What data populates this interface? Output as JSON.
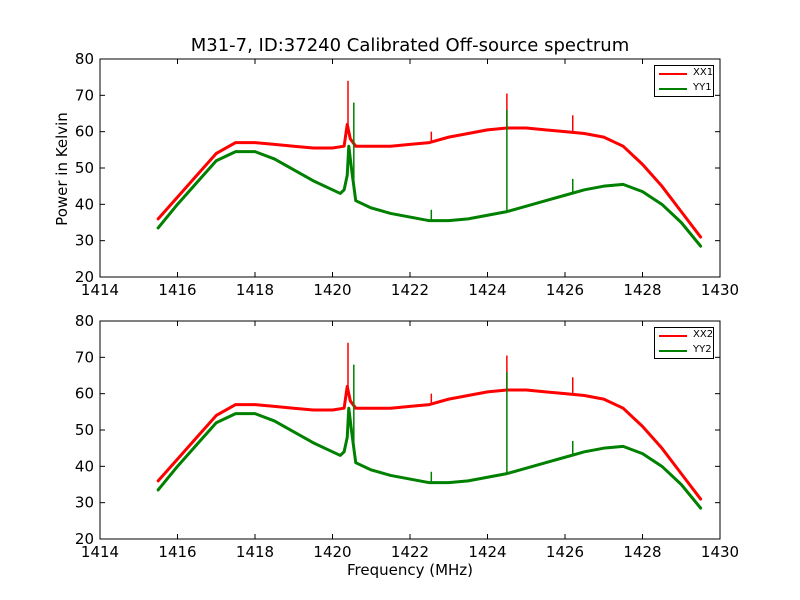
{
  "chart_data": [
    {
      "type": "line",
      "title": "M31-7, ID:37240 Calibrated Off-source spectrum",
      "xlabel": "",
      "ylabel": "Power in Kelvin",
      "xlim": [
        1414,
        1430
      ],
      "ylim": [
        20,
        80
      ],
      "xticks": [
        1414,
        1416,
        1418,
        1420,
        1422,
        1424,
        1426,
        1428,
        1430
      ],
      "yticks": [
        20,
        30,
        40,
        50,
        60,
        70,
        80
      ],
      "grid": false,
      "legend_position": "top-right",
      "series": [
        {
          "name": "XX1",
          "color": "#ff0000",
          "x": [
            1415.5,
            1416,
            1416.5,
            1417,
            1417.5,
            1418,
            1418.5,
            1419,
            1419.5,
            1420,
            1420.3,
            1420.38,
            1420.42,
            1420.46,
            1420.6,
            1421,
            1421.5,
            1422,
            1422.5,
            1423,
            1423.5,
            1424,
            1424.5,
            1425,
            1425.5,
            1426,
            1426.5,
            1427,
            1427.5,
            1428,
            1428.5,
            1429,
            1429.5
          ],
          "y": [
            36,
            42,
            48,
            54,
            57,
            57,
            56.5,
            56,
            55.5,
            55.5,
            56,
            62,
            60,
            58,
            56,
            56,
            56,
            56.5,
            57,
            58.5,
            59.5,
            60.5,
            61,
            61,
            60.5,
            60,
            59.5,
            58.5,
            56,
            51,
            45,
            38,
            31
          ],
          "spikes": [
            {
              "x": 1420.4,
              "y": 74
            },
            {
              "x": 1422.55,
              "y": 60
            },
            {
              "x": 1424.5,
              "y": 70.5
            },
            {
              "x": 1426.2,
              "y": 64.5
            }
          ]
        },
        {
          "name": "YY1",
          "color": "#008000",
          "x": [
            1415.5,
            1416,
            1416.5,
            1417,
            1417.5,
            1418,
            1418.5,
            1419,
            1419.5,
            1420,
            1420.2,
            1420.3,
            1420.38,
            1420.42,
            1420.5,
            1420.6,
            1421,
            1421.5,
            1422,
            1422.5,
            1423,
            1423.5,
            1424,
            1424.5,
            1425,
            1425.5,
            1426,
            1426.5,
            1427,
            1427.5,
            1428,
            1428.5,
            1429,
            1429.5
          ],
          "y": [
            33.5,
            40,
            46,
            52,
            54.5,
            54.5,
            52.5,
            49.5,
            46.5,
            44,
            43,
            44,
            48,
            56,
            49,
            41,
            39,
            37.5,
            36.5,
            35.5,
            35.5,
            36,
            37,
            38,
            39.5,
            41,
            42.5,
            44,
            45,
            45.5,
            43.5,
            40,
            35,
            28.5
          ],
          "spikes": [
            {
              "x": 1420.55,
              "y": 68
            },
            {
              "x": 1422.55,
              "y": 38.5
            },
            {
              "x": 1424.5,
              "y": 66
            },
            {
              "x": 1426.2,
              "y": 47
            }
          ]
        }
      ]
    },
    {
      "type": "line",
      "title": "",
      "xlabel": "Frequency (MHz)",
      "ylabel": "",
      "xlim": [
        1414,
        1430
      ],
      "ylim": [
        20,
        80
      ],
      "xticks": [
        1414,
        1416,
        1418,
        1420,
        1422,
        1424,
        1426,
        1428,
        1430
      ],
      "yticks": [
        20,
        30,
        40,
        50,
        60,
        70,
        80
      ],
      "grid": false,
      "legend_position": "top-right",
      "series": [
        {
          "name": "XX2",
          "color": "#ff0000",
          "x": [
            1415.5,
            1416,
            1416.5,
            1417,
            1417.5,
            1418,
            1418.5,
            1419,
            1419.5,
            1420,
            1420.3,
            1420.38,
            1420.42,
            1420.46,
            1420.6,
            1421,
            1421.5,
            1422,
            1422.5,
            1423,
            1423.5,
            1424,
            1424.5,
            1425,
            1425.5,
            1426,
            1426.5,
            1427,
            1427.5,
            1428,
            1428.5,
            1429,
            1429.5
          ],
          "y": [
            36,
            42,
            48,
            54,
            57,
            57,
            56.5,
            56,
            55.5,
            55.5,
            56,
            62,
            60,
            58,
            56,
            56,
            56,
            56.5,
            57,
            58.5,
            59.5,
            60.5,
            61,
            61,
            60.5,
            60,
            59.5,
            58.5,
            56,
            51,
            45,
            38,
            31
          ],
          "spikes": [
            {
              "x": 1420.4,
              "y": 74
            },
            {
              "x": 1422.55,
              "y": 60
            },
            {
              "x": 1424.5,
              "y": 70.5
            },
            {
              "x": 1426.2,
              "y": 64.5
            }
          ]
        },
        {
          "name": "YY2",
          "color": "#008000",
          "x": [
            1415.5,
            1416,
            1416.5,
            1417,
            1417.5,
            1418,
            1418.5,
            1419,
            1419.5,
            1420,
            1420.2,
            1420.3,
            1420.38,
            1420.42,
            1420.5,
            1420.6,
            1421,
            1421.5,
            1422,
            1422.5,
            1423,
            1423.5,
            1424,
            1424.5,
            1425,
            1425.5,
            1426,
            1426.5,
            1427,
            1427.5,
            1428,
            1428.5,
            1429,
            1429.5
          ],
          "y": [
            33.5,
            40,
            46,
            52,
            54.5,
            54.5,
            52.5,
            49.5,
            46.5,
            44,
            43,
            44,
            48,
            56,
            49,
            41,
            39,
            37.5,
            36.5,
            35.5,
            35.5,
            36,
            37,
            38,
            39.5,
            41,
            42.5,
            44,
            45,
            45.5,
            43.5,
            40,
            35,
            28.5
          ],
          "spikes": [
            {
              "x": 1420.55,
              "y": 68
            },
            {
              "x": 1422.55,
              "y": 38.5
            },
            {
              "x": 1424.5,
              "y": 66
            },
            {
              "x": 1426.2,
              "y": 47
            }
          ]
        }
      ]
    }
  ]
}
